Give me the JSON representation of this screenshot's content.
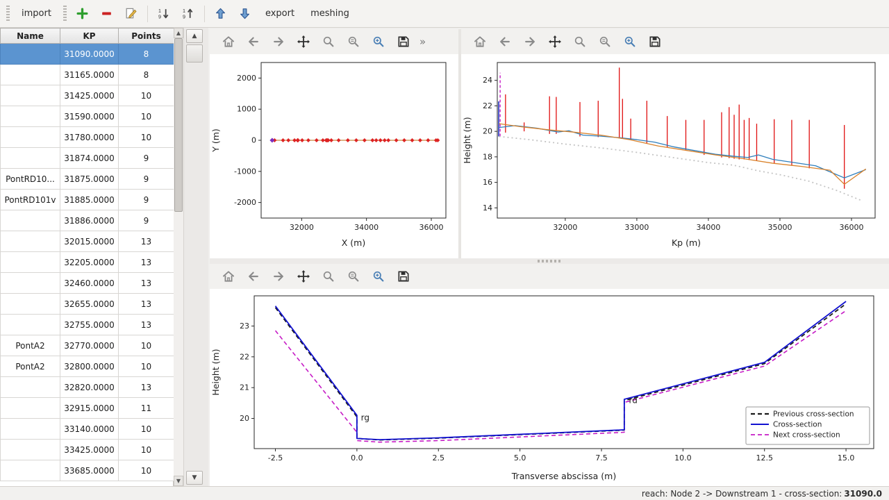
{
  "menubar": {
    "items": [
      "import",
      "export",
      "meshing"
    ]
  },
  "icons": {
    "scroll_up": "▲",
    "scroll_down": "▼",
    "overflow": "»"
  },
  "table": {
    "columns": [
      "Name",
      "KP",
      "Points"
    ],
    "rows": [
      {
        "name": "",
        "kp": "31090.0000",
        "points": "8",
        "selected": true
      },
      {
        "name": "",
        "kp": "31165.0000",
        "points": "8",
        "selected": false
      },
      {
        "name": "",
        "kp": "31425.0000",
        "points": "10",
        "selected": false
      },
      {
        "name": "",
        "kp": "31590.0000",
        "points": "10",
        "selected": false
      },
      {
        "name": "",
        "kp": "31780.0000",
        "points": "10",
        "selected": false
      },
      {
        "name": "",
        "kp": "31874.0000",
        "points": "9",
        "selected": false
      },
      {
        "name": "PontRD10...",
        "kp": "31875.0000",
        "points": "9",
        "selected": false
      },
      {
        "name": "PontRD101v",
        "kp": "31885.0000",
        "points": "9",
        "selected": false
      },
      {
        "name": "",
        "kp": "31886.0000",
        "points": "9",
        "selected": false
      },
      {
        "name": "",
        "kp": "32015.0000",
        "points": "13",
        "selected": false
      },
      {
        "name": "",
        "kp": "32205.0000",
        "points": "13",
        "selected": false
      },
      {
        "name": "",
        "kp": "32460.0000",
        "points": "13",
        "selected": false
      },
      {
        "name": "",
        "kp": "32655.0000",
        "points": "13",
        "selected": false
      },
      {
        "name": "",
        "kp": "32755.0000",
        "points": "13",
        "selected": false
      },
      {
        "name": "PontA2",
        "kp": "32770.0000",
        "points": "10",
        "selected": false
      },
      {
        "name": "PontA2",
        "kp": "32800.0000",
        "points": "10",
        "selected": false
      },
      {
        "name": "",
        "kp": "32820.0000",
        "points": "13",
        "selected": false
      },
      {
        "name": "",
        "kp": "32915.0000",
        "points": "11",
        "selected": false
      },
      {
        "name": "",
        "kp": "33140.0000",
        "points": "10",
        "selected": false
      },
      {
        "name": "",
        "kp": "33425.0000",
        "points": "10",
        "selected": false
      },
      {
        "name": "",
        "kp": "33685.0000",
        "points": "10",
        "selected": false
      }
    ]
  },
  "statusbar": {
    "prefix": "reach: Node 2 -> Downstream 1 - cross-section: ",
    "value": "31090.0"
  },
  "chart_data": [
    {
      "name": "plan",
      "type": "scatter",
      "xlabel": "X (m)",
      "ylabel": "Y (m)",
      "xlim": [
        30750,
        36450
      ],
      "ylim": [
        -2500,
        2500
      ],
      "xticks": [
        32000,
        34000,
        36000
      ],
      "xtick_labels": [
        "32000",
        "34000",
        "36000"
      ],
      "yticks": [
        -2000,
        -1000,
        0,
        1000,
        2000
      ],
      "ytick_labels": [
        "-2000",
        "-1000",
        "0",
        "1000",
        "2000"
      ],
      "series": [
        {
          "type": "line",
          "color": "#c8883c",
          "width": 1.2,
          "x": [
            31090,
            36200
          ],
          "y": 0
        },
        {
          "type": "scatter",
          "marker": "diamond",
          "color": "#dd2222",
          "size": 3,
          "x": [
            31165,
            31425,
            31590,
            31780,
            31874,
            31875,
            31885,
            31886,
            32015,
            32205,
            32460,
            32655,
            32755,
            32770,
            32800,
            32820,
            32915,
            33140,
            33425,
            33685,
            33940,
            34185,
            34300,
            34430,
            34560,
            34675,
            34920,
            35165,
            35410,
            35655,
            35900,
            36145,
            36200
          ],
          "y": 0
        },
        {
          "type": "scatter",
          "marker": "diamond",
          "color": "#7a2fbf",
          "size": 3.5,
          "x": [
            31090
          ],
          "y": 0
        }
      ]
    },
    {
      "name": "profile",
      "type": "line",
      "xlabel": "Kp (m)",
      "ylabel": "Height (m)",
      "xlim": [
        31050,
        36330
      ],
      "ylim": [
        13.2,
        25.4
      ],
      "xticks": [
        32000,
        33000,
        34000,
        35000,
        36000
      ],
      "xtick_labels": [
        "32000",
        "33000",
        "34000",
        "35000",
        "36000"
      ],
      "yticks": [
        14,
        16,
        18,
        20,
        22,
        24
      ],
      "ytick_labels": [
        "14",
        "16",
        "18",
        "20",
        "22",
        "24"
      ],
      "series": [
        {
          "type": "vlines",
          "color": "#e01010",
          "width": 1.3,
          "segments": [
            [
              31165,
              19.9,
              22.9
            ],
            [
              31425,
              20.0,
              20.7
            ],
            [
              31780,
              19.8,
              22.75
            ],
            [
              31874,
              19.8,
              22.7
            ],
            [
              32205,
              19.6,
              22.3
            ],
            [
              32460,
              19.55,
              22.4
            ],
            [
              32755,
              19.45,
              25.0
            ],
            [
              32800,
              19.45,
              22.55
            ],
            [
              32915,
              19.35,
              21.0
            ],
            [
              33140,
              19.05,
              22.4
            ],
            [
              33425,
              18.75,
              21.2
            ],
            [
              33685,
              18.5,
              20.9
            ],
            [
              33940,
              18.15,
              20.9
            ],
            [
              34185,
              17.95,
              21.5
            ],
            [
              34290,
              17.9,
              21.9
            ],
            [
              34360,
              17.85,
              21.3
            ],
            [
              34430,
              17.8,
              22.1
            ],
            [
              34500,
              17.8,
              20.9
            ],
            [
              34570,
              17.75,
              21.05
            ],
            [
              34675,
              17.7,
              20.6
            ],
            [
              34920,
              17.5,
              20.95
            ],
            [
              35165,
              17.3,
              20.9
            ],
            [
              35410,
              17.1,
              20.9
            ],
            [
              35900,
              15.5,
              20.5
            ]
          ]
        },
        {
          "type": "vlines",
          "color": "#2233bb",
          "width": 1.6,
          "segments": [
            [
              31070,
              19.6,
              22.35
            ]
          ]
        },
        {
          "type": "vlines",
          "color": "#c61bc6",
          "width": 1.4,
          "dash": "4 3",
          "segments": [
            [
              31090,
              19.6,
              24.6
            ]
          ]
        },
        {
          "type": "line",
          "color": "#c4c4c4",
          "width": 1.8,
          "dash": "2 4",
          "x": [
            31075,
            31500,
            32000,
            32500,
            33000,
            33500,
            34000,
            34350,
            34700,
            35000,
            35400,
            35800,
            36150
          ],
          "y": [
            19.6,
            19.35,
            19.0,
            18.7,
            18.35,
            17.95,
            17.55,
            17.35,
            16.9,
            16.6,
            16.1,
            15.35,
            14.55
          ]
        },
        {
          "type": "line",
          "color": "#2e7ebc",
          "width": 1.3,
          "x": [
            31075,
            31300,
            31600,
            31900,
            32050,
            32250,
            32500,
            32760,
            33000,
            33250,
            33500,
            33800,
            34100,
            34350,
            34550,
            34700,
            34900,
            35200,
            35500,
            35900,
            36200
          ],
          "y": [
            20.3,
            20.45,
            20.25,
            19.95,
            20.05,
            19.7,
            19.62,
            19.5,
            19.35,
            19.15,
            18.8,
            18.5,
            18.2,
            18.05,
            17.95,
            18.15,
            17.8,
            17.55,
            17.3,
            16.35,
            17.0
          ]
        },
        {
          "type": "line",
          "color": "#d9822b",
          "width": 1.3,
          "x": [
            31075,
            31400,
            31800,
            32100,
            32500,
            32900,
            33300,
            33700,
            34100,
            34500,
            34900,
            35300,
            35700,
            35900,
            36200
          ],
          "y": [
            20.6,
            20.35,
            20.1,
            19.95,
            19.7,
            19.35,
            18.85,
            18.5,
            18.15,
            17.85,
            17.5,
            17.25,
            16.95,
            15.85,
            17.05
          ]
        }
      ]
    },
    {
      "name": "cross",
      "type": "line",
      "xlabel": "Transverse abscissa (m)",
      "ylabel": "Height (m)",
      "xlim": [
        -3.15,
        15.85
      ],
      "ylim": [
        19.02,
        23.98
      ],
      "xticks": [
        -2.5,
        0,
        2.5,
        5,
        7.5,
        10,
        12.5,
        15
      ],
      "xtick_labels": [
        "-2.5",
        "0.0",
        "2.5",
        "5.0",
        "7.5",
        "10.0",
        "12.5",
        "15.0"
      ],
      "yticks": [
        20,
        21,
        22,
        23
      ],
      "ytick_labels": [
        "20",
        "21",
        "22",
        "23"
      ],
      "series": [
        {
          "name": "Previous cross-section",
          "type": "line",
          "color": "#1a1a1a",
          "width": 1.8,
          "dash": "6 4",
          "x": [
            -2.5,
            0,
            0,
            0.7,
            2.5,
            8.2,
            8.2,
            12.5,
            15
          ],
          "y": [
            23.6,
            20.05,
            19.35,
            19.3,
            19.36,
            19.62,
            20.58,
            21.78,
            23.72
          ]
        },
        {
          "name": "Next cross-section",
          "type": "line",
          "color": "#c61bc6",
          "width": 1.6,
          "dash": "6 4",
          "x": [
            -2.5,
            0,
            0,
            0.7,
            2.5,
            8.2,
            8.2,
            9.4,
            12.5,
            15
          ],
          "y": [
            22.85,
            19.55,
            19.28,
            19.23,
            19.28,
            19.55,
            20.52,
            20.85,
            21.7,
            23.5
          ]
        },
        {
          "name": "Cross-section",
          "type": "line",
          "color": "#1212d0",
          "width": 1.8,
          "x": [
            -2.5,
            0,
            0,
            0.7,
            2.5,
            8.2,
            8.2,
            12.5,
            15
          ],
          "y": [
            23.65,
            20.1,
            19.35,
            19.31,
            19.37,
            19.63,
            20.62,
            21.82,
            23.8
          ]
        }
      ],
      "annotations": [
        {
          "text": "rg",
          "x": 0.08,
          "y": 19.93,
          "color": "#e8883c"
        },
        {
          "text": "rd",
          "x": 8.3,
          "y": 20.5,
          "color": "#5b8db8"
        }
      ],
      "legend": {
        "position": "lower-right",
        "entries": [
          {
            "label": "Previous cross-section",
            "color": "#1a1a1a",
            "dash": "6 4",
            "width": 2.2
          },
          {
            "label": "Cross-section",
            "color": "#1212d0",
            "dash": "",
            "width": 2
          },
          {
            "label": "Next cross-section",
            "color": "#c61bc6",
            "dash": "6 4",
            "width": 1.8
          }
        ]
      }
    }
  ]
}
